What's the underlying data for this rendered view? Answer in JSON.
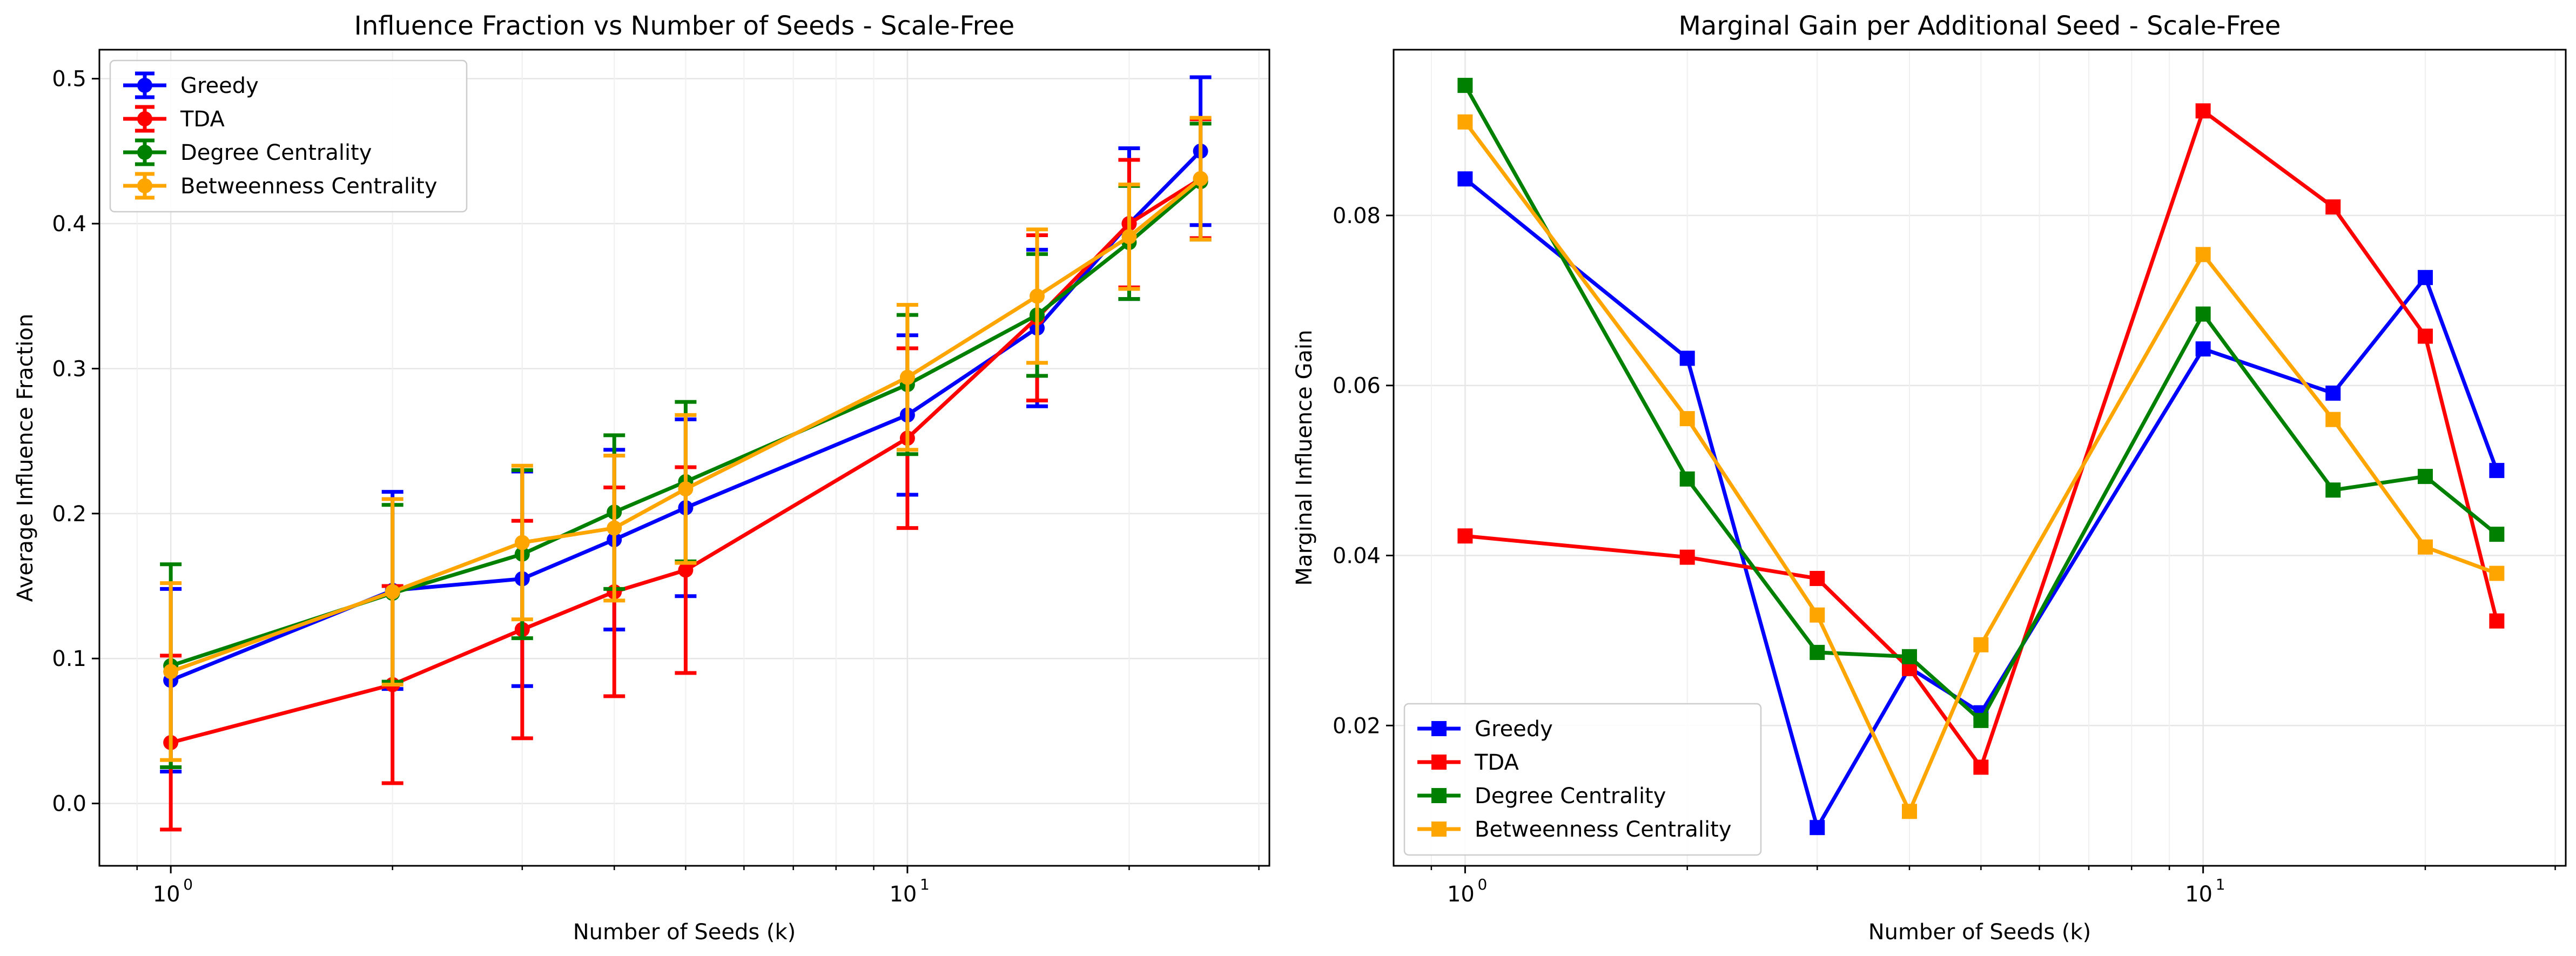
{
  "colors": {
    "Greedy": "#0000ff",
    "TDA": "#ff0000",
    "Degree Centrality": "#008000",
    "Betweenness Centrality": "#ffa500"
  },
  "chart_data": [
    {
      "type": "line",
      "title": "Influence Fraction vs Number of Seeds - Scale-Free",
      "xlabel": "Number of Seeds (k)",
      "ylabel": "Average Influence Fraction",
      "xscale": "log",
      "xlim": [
        0.8,
        31
      ],
      "ylim": [
        -0.043,
        0.52
      ],
      "x_ticks": [
        {
          "value": 1,
          "label": "10",
          "sup": "0"
        },
        {
          "value": 10,
          "label": "10",
          "sup": "1"
        }
      ],
      "y_ticks": [
        "0.0",
        "0.1",
        "0.2",
        "0.3",
        "0.4",
        "0.5"
      ],
      "y_tick_values": [
        0.0,
        0.1,
        0.2,
        0.3,
        0.4,
        0.5
      ],
      "grid": true,
      "legend_position": "upper-left",
      "marker": "circle",
      "error_bars": true,
      "x": [
        1,
        2,
        3,
        4,
        5,
        10,
        15,
        20,
        25
      ],
      "series": [
        {
          "name": "Greedy",
          "values": [
            0.085,
            0.147,
            0.155,
            0.182,
            0.204,
            0.268,
            0.328,
            0.4,
            0.45
          ],
          "err": [
            0.063,
            0.068,
            0.074,
            0.062,
            0.061,
            0.055,
            0.054,
            0.052,
            0.051
          ]
        },
        {
          "name": "TDA",
          "values": [
            0.042,
            0.082,
            0.12,
            0.146,
            0.161,
            0.252,
            0.335,
            0.4,
            0.431
          ],
          "err": [
            0.06,
            0.068,
            0.075,
            0.072,
            0.071,
            0.062,
            0.057,
            0.044,
            0.041
          ]
        },
        {
          "name": "Degree Centrality",
          "values": [
            0.095,
            0.145,
            0.172,
            0.201,
            0.222,
            0.289,
            0.337,
            0.387,
            0.429
          ],
          "err": [
            0.07,
            0.061,
            0.058,
            0.053,
            0.055,
            0.048,
            0.042,
            0.039,
            0.04
          ]
        },
        {
          "name": "Betweenness Centrality",
          "values": [
            0.091,
            0.146,
            0.18,
            0.19,
            0.217,
            0.294,
            0.35,
            0.391,
            0.431
          ],
          "err": [
            0.061,
            0.064,
            0.053,
            0.05,
            0.051,
            0.05,
            0.046,
            0.036,
            0.042
          ]
        }
      ]
    },
    {
      "type": "line",
      "title": "Marginal Gain per Additional Seed - Scale-Free",
      "xlabel": "Number of Seeds (k)",
      "ylabel": "Marginal Influence Gain",
      "xscale": "log",
      "xlim": [
        0.8,
        31
      ],
      "ylim": [
        0.0035,
        0.0995
      ],
      "x_ticks": [
        {
          "value": 1,
          "label": "10",
          "sup": "0"
        },
        {
          "value": 10,
          "label": "10",
          "sup": "1"
        }
      ],
      "y_ticks": [
        "0.02",
        "0.04",
        "0.06",
        "0.08"
      ],
      "y_tick_values": [
        0.02,
        0.04,
        0.06,
        0.08
      ],
      "grid": true,
      "legend_position": "lower-left",
      "marker": "square",
      "error_bars": false,
      "x": [
        1,
        2,
        3,
        4,
        5,
        10,
        15,
        20,
        25
      ],
      "series": [
        {
          "name": "Greedy",
          "values": [
            0.0843,
            0.0632,
            0.008,
            0.0268,
            0.0215,
            0.0643,
            0.0591,
            0.0727,
            0.05
          ]
        },
        {
          "name": "TDA",
          "values": [
            0.0423,
            0.0398,
            0.0373,
            0.0267,
            0.0151,
            0.0923,
            0.081,
            0.0658,
            0.0323
          ]
        },
        {
          "name": "Degree Centrality",
          "values": [
            0.0953,
            0.049,
            0.0286,
            0.0281,
            0.0206,
            0.0684,
            0.0477,
            0.0493,
            0.0425
          ]
        },
        {
          "name": "Betweenness Centrality",
          "values": [
            0.091,
            0.0561,
            0.033,
            0.0099,
            0.0295,
            0.0754,
            0.056,
            0.041,
            0.0379
          ]
        }
      ]
    }
  ]
}
